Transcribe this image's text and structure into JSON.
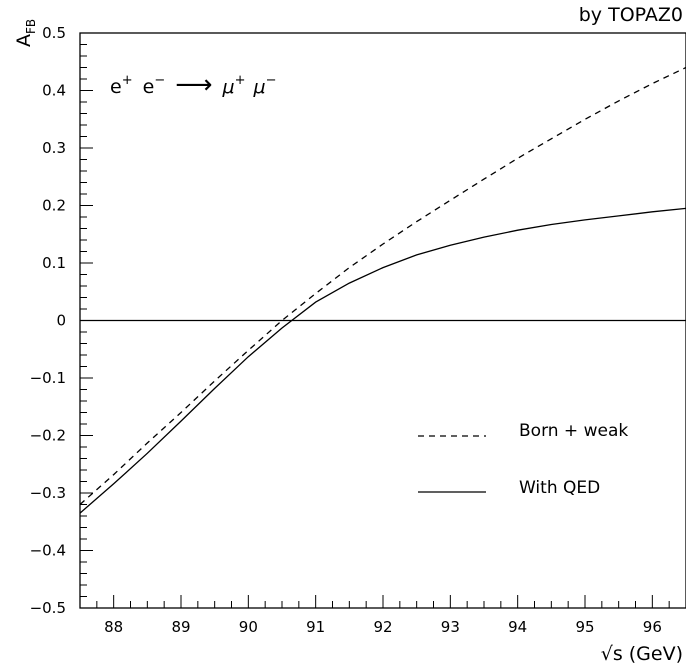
{
  "chart_data": {
    "type": "line",
    "credit": "by TOPAZ0",
    "process": {
      "lhs": [
        {
          "sym": "e",
          "sup": "+"
        },
        {
          "sym": "e",
          "sup": "−"
        }
      ],
      "arrow": "⟶",
      "rhs": [
        {
          "sym": "μ",
          "sup": "+"
        },
        {
          "sym": "μ",
          "sup": "−"
        }
      ]
    },
    "ylabel": {
      "base": "A",
      "sub": "FB"
    },
    "xlabel": {
      "root": "√",
      "text": "s (GeV)"
    },
    "xlim": [
      87.5,
      96.5
    ],
    "ylim": [
      -0.5,
      0.5
    ],
    "xticks": [
      88,
      89,
      90,
      91,
      92,
      93,
      94,
      95,
      96
    ],
    "yticks": [
      -0.5,
      -0.4,
      -0.3,
      -0.2,
      -0.1,
      0,
      0.1,
      0.2,
      0.3,
      0.4,
      0.5
    ],
    "ytick_labels": [
      "−0.5",
      "−0.4",
      "−0.3",
      "−0.2",
      "−0.1",
      "0",
      "0.1",
      "0.2",
      "0.3",
      "0.4",
      "0.5"
    ],
    "zero_line": true,
    "legend_position": "lower-right",
    "series": [
      {
        "name": "Born + weak",
        "style": "dashed",
        "x": [
          87.5,
          88.0,
          88.5,
          89.0,
          89.5,
          90.0,
          90.5,
          91.0,
          91.5,
          92.0,
          92.5,
          93.0,
          93.5,
          94.0,
          94.5,
          95.0,
          95.5,
          96.0,
          96.5
        ],
        "y": [
          -0.32,
          -0.268,
          -0.213,
          -0.16,
          -0.105,
          -0.052,
          0.0,
          0.047,
          0.092,
          0.133,
          0.172,
          0.209,
          0.246,
          0.282,
          0.316,
          0.35,
          0.382,
          0.412,
          0.44
        ]
      },
      {
        "name": "With QED",
        "style": "solid",
        "x": [
          87.5,
          88.0,
          88.5,
          89.0,
          89.5,
          90.0,
          90.5,
          91.0,
          91.5,
          92.0,
          92.5,
          93.0,
          93.5,
          94.0,
          94.5,
          95.0,
          95.5,
          96.0,
          96.5
        ],
        "y": [
          -0.335,
          -0.284,
          -0.231,
          -0.175,
          -0.118,
          -0.063,
          -0.013,
          0.032,
          0.065,
          0.092,
          0.114,
          0.131,
          0.145,
          0.157,
          0.167,
          0.175,
          0.182,
          0.189,
          0.195
        ]
      }
    ]
  }
}
